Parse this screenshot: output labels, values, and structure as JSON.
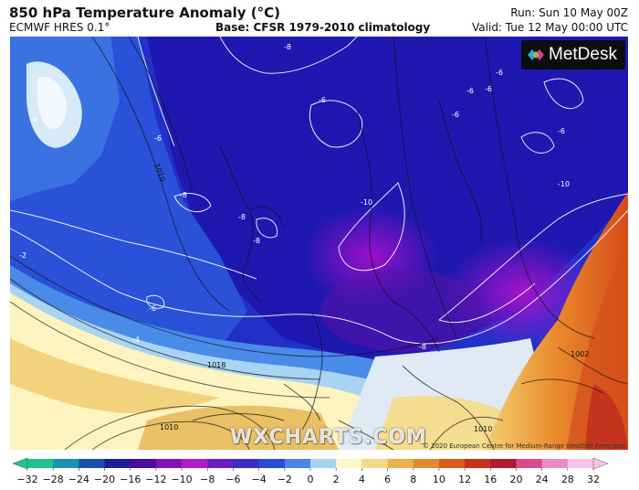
{
  "header": {
    "title": "850 hPa Temperature Anomaly (°C)",
    "model": "ECMWF HRES 0.1°",
    "base": "Base: CFSR 1979-2010 climatology",
    "run": "Run: Sun 10 May 00Z",
    "valid": "Valid: Tue 12 May 00:00 UTC"
  },
  "branding": {
    "logo_text": "MetDesk",
    "watermark": "WXCHARTS.COM",
    "copyright": "© 2020 European Centre for Medium-Range Weather Forecasts"
  },
  "map": {
    "anomaly_labels": [
      {
        "text": "-6"
      },
      {
        "text": "-6"
      },
      {
        "text": "-6"
      },
      {
        "text": "-6"
      },
      {
        "text": "-6"
      },
      {
        "text": "-8"
      },
      {
        "text": "-8"
      },
      {
        "text": "-8"
      },
      {
        "text": "-8"
      },
      {
        "text": "-8"
      },
      {
        "text": "-10"
      },
      {
        "text": "-10"
      },
      {
        "text": "-4"
      },
      {
        "text": "-4"
      },
      {
        "text": "-2"
      },
      {
        "text": "-6"
      },
      {
        "text": "-6"
      },
      {
        "text": "-6"
      }
    ],
    "isobar_labels": [
      {
        "text": "1010"
      },
      {
        "text": "1018"
      },
      {
        "text": "1010"
      },
      {
        "text": "1002"
      },
      {
        "text": "1010"
      }
    ]
  },
  "colorbar": {
    "ticks": [
      "−32",
      "−28",
      "−24",
      "−20",
      "−16",
      "−12",
      "−10",
      "−8",
      "−6",
      "−4",
      "−2",
      "0",
      "2",
      "4",
      "6",
      "8",
      "10",
      "12",
      "16",
      "20",
      "24",
      "28",
      "32"
    ],
    "colors": [
      "#22c28e",
      "#1a8fb0",
      "#1a4fa8",
      "#1c1f96",
      "#4a0c9a",
      "#7c14b8",
      "#b21cc8",
      "#6a20c0",
      "#3a2cc4",
      "#2a4bd8",
      "#4a86e8",
      "#a6d4f0",
      "#fff6c8",
      "#f3d88a",
      "#e9b24c",
      "#e58a2a",
      "#dc5a18",
      "#c8301a",
      "#b01a30",
      "#d94a8a",
      "#ec8ac2",
      "#f6c4e6"
    ]
  }
}
